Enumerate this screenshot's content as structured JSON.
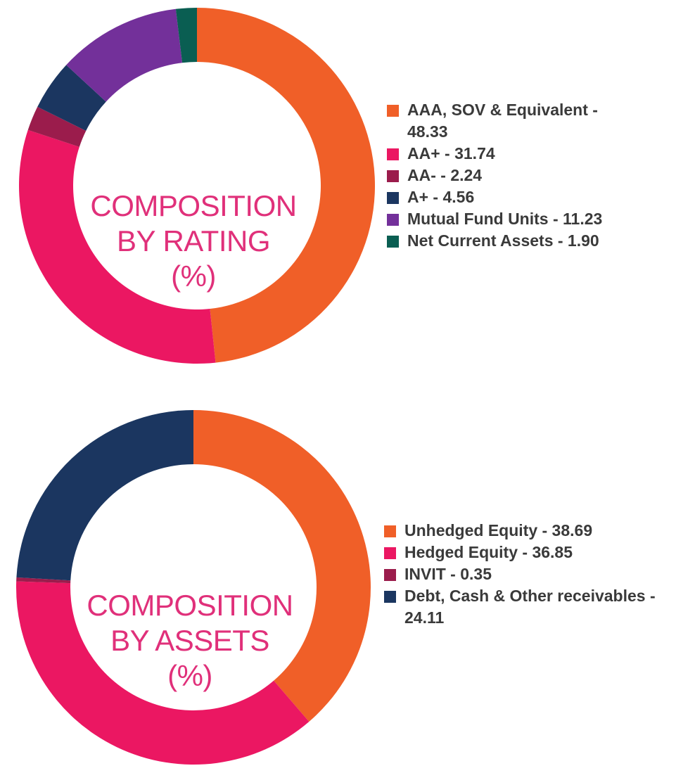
{
  "chart_data": [
    {
      "type": "pie",
      "variant": "donut",
      "title_lines": [
        "COMPOSITION",
        "BY RATING",
        "(%)"
      ],
      "unit": "%",
      "slices": [
        {
          "label": "AAA, SOV & Equivalent - 48.33",
          "value": 48.33,
          "color": "#f05f28"
        },
        {
          "label": "AA+ - 31.74",
          "value": 31.74,
          "color": "#eb1762"
        },
        {
          "label": "AA- - 2.24",
          "value": 2.24,
          "color": "#9b1c4c"
        },
        {
          "label": "A+ - 4.56",
          "value": 4.56,
          "color": "#1b3660"
        },
        {
          "label": "Mutual Fund Units - 11.23",
          "value": 11.23,
          "color": "#73309a"
        },
        {
          "label": "Net Current Assets - 1.90",
          "value": 1.9,
          "color": "#0a5e52"
        }
      ],
      "legend_position": "right"
    },
    {
      "type": "pie",
      "variant": "donut",
      "title_lines": [
        "COMPOSITION",
        "BY ASSETS",
        "(%)"
      ],
      "unit": "%",
      "slices": [
        {
          "label": "Unhedged Equity - 38.69",
          "value": 38.69,
          "color": "#f05f28"
        },
        {
          "label": "Hedged Equity - 36.85",
          "value": 36.85,
          "color": "#eb1762"
        },
        {
          "label": "INVIT - 0.35",
          "value": 0.35,
          "color": "#9b1c4c"
        },
        {
          "label": "Debt, Cash & Other receivables - 24.11",
          "value": 24.11,
          "color": "#1b3660"
        }
      ],
      "legend_position": "right"
    }
  ]
}
